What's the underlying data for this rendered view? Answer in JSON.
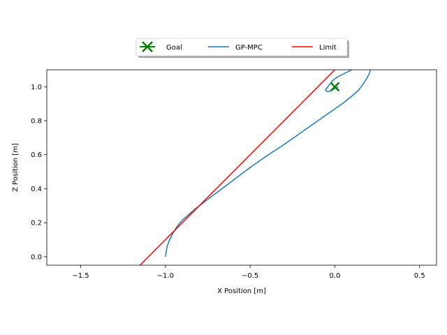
{
  "chart_data": {
    "type": "line",
    "title": "",
    "xlabel": "X Position [m]",
    "ylabel": "Z Position [m]",
    "xlim": [
      -1.7,
      0.6
    ],
    "ylim": [
      -0.05,
      1.1
    ],
    "grid": false,
    "legend_position": "top-center",
    "xticks": [
      -1.5,
      -1.0,
      -0.5,
      0.0,
      0.5
    ],
    "xtick_labels": [
      "−1.5",
      "−1.0",
      "−0.5",
      "0.0",
      "0.5"
    ],
    "yticks": [
      0.0,
      0.2,
      0.4,
      0.6,
      0.8,
      1.0
    ],
    "ytick_labels": [
      "0.0",
      "0.2",
      "0.4",
      "0.6",
      "0.8",
      "1.0"
    ],
    "series": [
      {
        "name": "Goal",
        "kind": "marker",
        "marker": "x",
        "color": "#008000",
        "points": [
          [
            0.0,
            1.0
          ]
        ]
      },
      {
        "name": "GP-MPC",
        "kind": "line",
        "color": "#1f77b4",
        "points": [
          [
            -1.0,
            0.0
          ],
          [
            -0.995,
            0.03
          ],
          [
            -0.99,
            0.06
          ],
          [
            -0.975,
            0.1
          ],
          [
            -0.955,
            0.14
          ],
          [
            -0.93,
            0.18
          ],
          [
            -0.9,
            0.215
          ],
          [
            -0.86,
            0.25
          ],
          [
            -0.82,
            0.285
          ],
          [
            -0.78,
            0.315
          ],
          [
            -0.72,
            0.36
          ],
          [
            -0.66,
            0.405
          ],
          [
            -0.58,
            0.465
          ],
          [
            -0.5,
            0.525
          ],
          [
            -0.4,
            0.595
          ],
          [
            -0.3,
            0.66
          ],
          [
            -0.2,
            0.73
          ],
          [
            -0.1,
            0.8
          ],
          [
            0.0,
            0.87
          ],
          [
            0.05,
            0.905
          ],
          [
            0.1,
            0.945
          ],
          [
            0.14,
            0.98
          ],
          [
            0.17,
            1.02
          ],
          [
            0.2,
            1.07
          ],
          [
            0.21,
            1.1
          ]
        ]
      },
      {
        "name": "GP-MPC",
        "kind": "line-loop",
        "color": "#1f77b4",
        "points": [
          [
            0.1,
            1.1
          ],
          [
            0.06,
            1.08
          ],
          [
            0.02,
            1.06
          ],
          [
            -0.01,
            1.04
          ],
          [
            -0.03,
            1.015
          ],
          [
            -0.05,
            0.99
          ],
          [
            -0.055,
            0.978
          ],
          [
            -0.045,
            0.972
          ],
          [
            -0.025,
            0.975
          ],
          [
            0.0,
            0.99
          ],
          [
            0.02,
            1.0
          ]
        ]
      },
      {
        "name": "Limit",
        "kind": "line",
        "color": "#ff0000",
        "points": [
          [
            -1.15,
            -0.05
          ],
          [
            0.0,
            1.1
          ]
        ]
      }
    ],
    "legend": [
      {
        "label": "Goal",
        "color": "#008000",
        "symbol": "x-line"
      },
      {
        "label": "GP-MPC",
        "color": "#1f77b4",
        "symbol": "line"
      },
      {
        "label": "Limit",
        "color": "#ff0000",
        "symbol": "line"
      }
    ]
  }
}
